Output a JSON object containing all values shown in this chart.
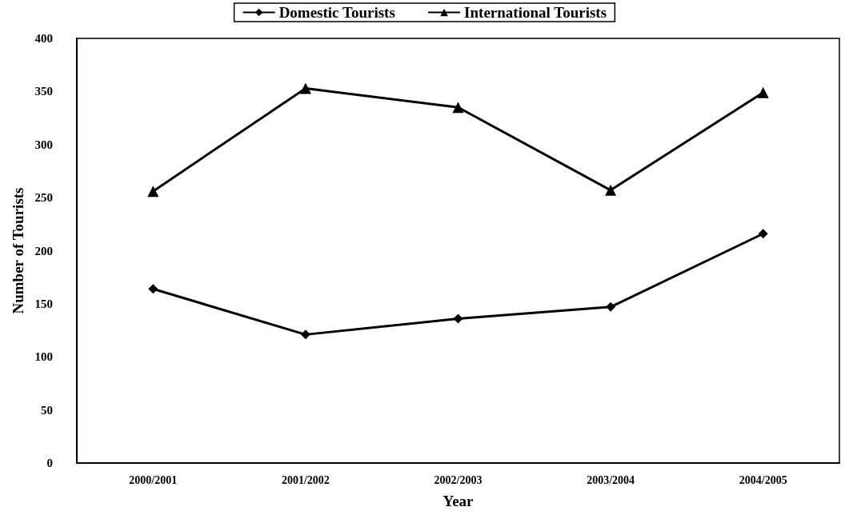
{
  "chart_data": {
    "type": "line",
    "xlabel": "Year",
    "ylabel": "Number of Tourists",
    "categories": [
      "2000/2001",
      "2001/2002",
      "2002/2003",
      "2003/2004",
      "2004/2005"
    ],
    "series": [
      {
        "name": "Domestic Tourists",
        "color": "#000000",
        "marker": "diamond",
        "values": [
          164,
          121,
          136,
          147,
          216
        ]
      },
      {
        "name": "International Tourists",
        "color": "#000000",
        "marker": "triangle",
        "values": [
          256,
          353,
          335,
          257,
          349
        ]
      }
    ],
    "ylim": [
      0,
      400
    ],
    "yticks": [
      0,
      50,
      100,
      150,
      200,
      250,
      300,
      350,
      400
    ],
    "grid": false,
    "legend": "top",
    "line_style": "solid"
  }
}
